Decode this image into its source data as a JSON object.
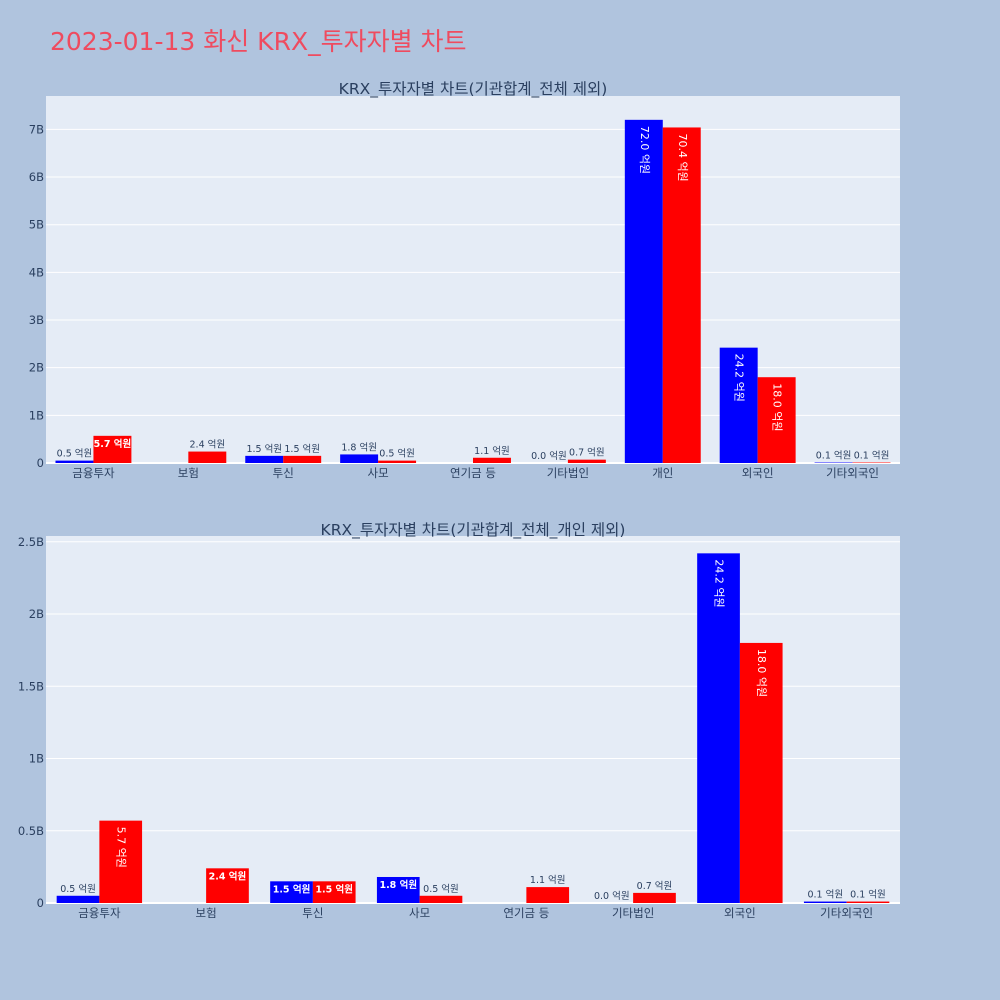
{
  "title": "2023-01-13 화신 KRX_투자자별 차트",
  "colors": {
    "series_a": "#0000ff",
    "series_b": "#ff0000",
    "background": "#b0c4de",
    "plot_bg": "#e5ecf6"
  },
  "chart_data": [
    {
      "type": "bar",
      "title": "KRX_투자자별 차트(기관합계_전체 제외)",
      "categories": [
        "금융투자",
        "보험",
        "투신",
        "사모",
        "연기금 등",
        "기타법인",
        "개인",
        "외국인",
        "기타외국인"
      ],
      "series": [
        {
          "values": [
            50000000,
            0,
            150000000,
            180000000,
            0,
            0,
            7200000000,
            2420000000,
            10000000
          ],
          "labels": [
            "0.5 억원",
            "",
            "1.5 억원",
            "1.8 억원",
            "",
            "0.0 억원",
            "72.0 억원",
            "24.2 억원",
            "0.1 억원"
          ]
        },
        {
          "values": [
            570000000,
            240000000,
            150000000,
            50000000,
            110000000,
            70000000,
            7040000000,
            1800000000,
            10000000
          ],
          "labels": [
            "5.7 억원",
            "2.4 억원",
            "1.5 억원",
            "0.5 억원",
            "1.1 억원",
            "0.7 억원",
            "70.4 억원",
            "18.0 억원",
            "0.1 억원"
          ]
        }
      ],
      "ylim": [
        0,
        7700000000
      ],
      "yticks": [
        0,
        1000000000,
        2000000000,
        3000000000,
        4000000000,
        5000000000,
        6000000000,
        7000000000
      ],
      "ytick_labels": [
        "0",
        "1B",
        "2B",
        "3B",
        "4B",
        "5B",
        "6B",
        "7B"
      ],
      "grid": true
    },
    {
      "type": "bar",
      "title": "KRX_투자자별 차트(기관합계_전체_개인 제외)",
      "categories": [
        "금융투자",
        "보험",
        "투신",
        "사모",
        "연기금 등",
        "기타법인",
        "외국인",
        "기타외국인"
      ],
      "series": [
        {
          "values": [
            50000000,
            0,
            150000000,
            180000000,
            0,
            0,
            2420000000,
            10000000
          ],
          "labels": [
            "0.5 억원",
            "",
            "1.5 억원",
            "1.8 억원",
            "",
            "0.0 억원",
            "24.2 억원",
            "0.1 억원"
          ]
        },
        {
          "values": [
            570000000,
            240000000,
            150000000,
            50000000,
            110000000,
            70000000,
            1800000000,
            10000000
          ],
          "labels": [
            "5.7 억원",
            "2.4 억원",
            "1.5 억원",
            "0.5 억원",
            "1.1 억원",
            "0.7 억원",
            "18.0 억원",
            "0.1 억원"
          ]
        }
      ],
      "ylim": [
        0,
        2540000000
      ],
      "yticks": [
        0,
        500000000,
        1000000000,
        1500000000,
        2000000000,
        2500000000
      ],
      "ytick_labels": [
        "0",
        "0.5B",
        "1B",
        "1.5B",
        "2B",
        "2.5B"
      ],
      "grid": true
    }
  ]
}
